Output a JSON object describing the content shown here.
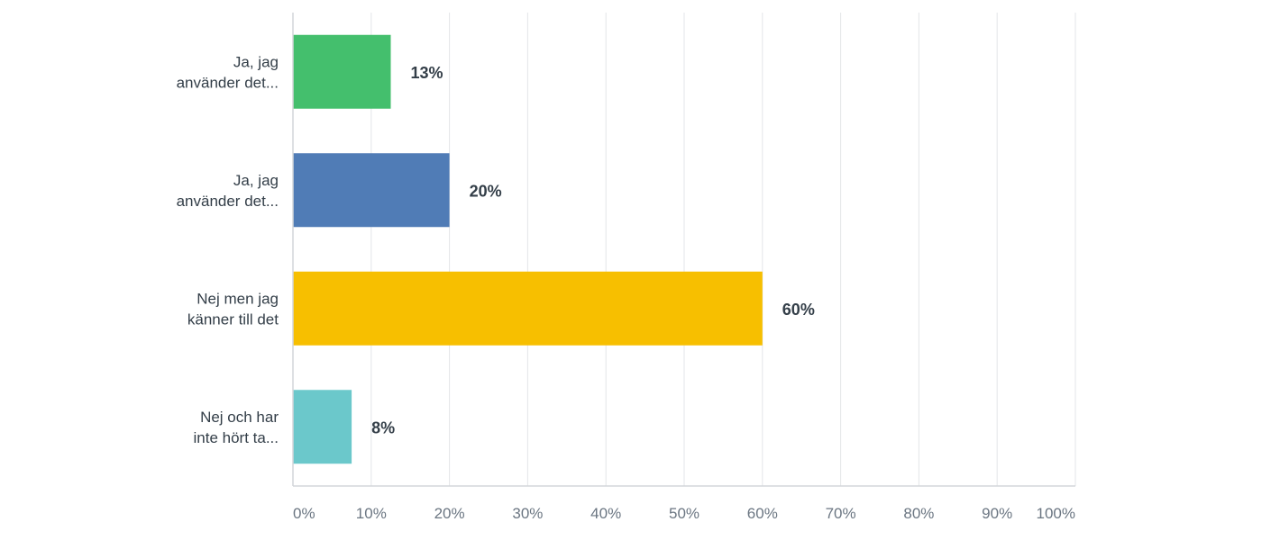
{
  "chart_data": {
    "type": "bar",
    "orientation": "horizontal",
    "categories": [
      [
        "Ja, jag",
        "använder det..."
      ],
      [
        "Ja, jag",
        "använder det..."
      ],
      [
        "Nej men jag",
        "känner till det"
      ],
      [
        "Nej och har",
        "inte hört ta..."
      ]
    ],
    "values": [
      12.5,
      20,
      60,
      7.5
    ],
    "value_labels": [
      "13%",
      "20%",
      "60%",
      "8%"
    ],
    "colors": [
      "#44bf6d",
      "#507cb6",
      "#f7bf00",
      "#6bc8cb"
    ],
    "xlim": [
      0,
      100
    ],
    "ticks": [
      0,
      10,
      20,
      30,
      40,
      50,
      60,
      70,
      80,
      90,
      100
    ],
    "tick_labels": [
      "0%",
      "10%",
      "20%",
      "30%",
      "40%",
      "50%",
      "60%",
      "70%",
      "80%",
      "90%",
      "100%"
    ],
    "grid": true,
    "legend": "none"
  }
}
